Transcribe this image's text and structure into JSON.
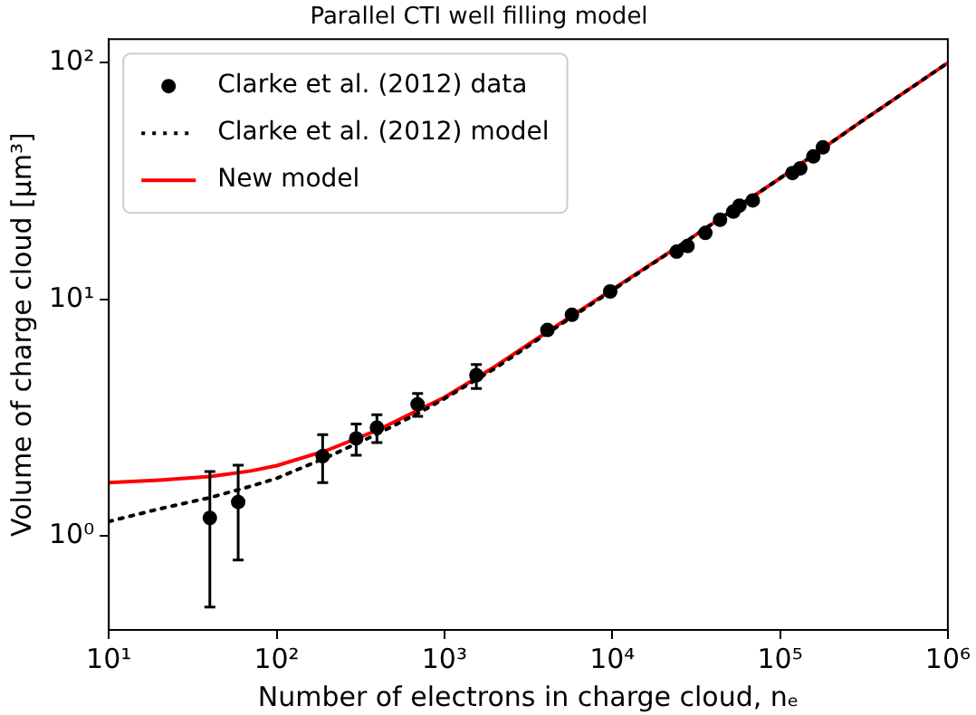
{
  "chart_data": {
    "type": "scatter",
    "title": "Parallel CTI well filling model",
    "xlabel": "Number of electrons in charge cloud, nₑ",
    "ylabel": "Volume of charge cloud [μm³]",
    "log": "xy",
    "xlim": [
      10,
      1000000
    ],
    "ylim": [
      0.4,
      126
    ],
    "xticks": [
      {
        "value": 10,
        "label": "10¹"
      },
      {
        "value": 100,
        "label": "10²"
      },
      {
        "value": 1000,
        "label": "10³"
      },
      {
        "value": 10000,
        "label": "10⁴"
      },
      {
        "value": 100000,
        "label": "10⁵"
      },
      {
        "value": 1000000,
        "label": "10⁶"
      }
    ],
    "yticks": [
      {
        "value": 1,
        "label": "10⁰"
      },
      {
        "value": 10,
        "label": "10¹"
      },
      {
        "value": 100,
        "label": "10²"
      }
    ],
    "grid": false,
    "legend": "top left",
    "series": [
      {
        "name": "Clarke et al. (2012) data",
        "marker": "circle",
        "color": "#000000",
        "x": [
          40,
          59,
          188,
          298,
          396,
          692,
          1550,
          4110,
          5750,
          9730,
          24200,
          28100,
          35900,
          43900,
          52700,
          57300,
          68800,
          118600,
          132000,
          158000,
          180000
        ],
        "values": [
          1.19,
          1.39,
          2.17,
          2.58,
          2.87,
          3.6,
          4.78,
          7.42,
          8.6,
          10.8,
          15.9,
          16.8,
          19.1,
          21.7,
          23.5,
          24.9,
          26.2,
          34.2,
          35.8,
          40.2,
          43.9
        ],
        "errors": [
          [
            0.5,
            1.87
          ],
          [
            0.79,
            1.99
          ],
          [
            1.68,
            2.68
          ],
          [
            2.19,
            2.97
          ],
          [
            2.48,
            3.25
          ],
          [
            3.2,
            4.0
          ],
          [
            4.2,
            5.3
          ],
          null,
          null,
          null,
          null,
          null,
          null,
          null,
          null,
          null,
          null,
          null,
          null,
          null,
          null
        ]
      },
      {
        "name": "Clarke et al. (2012) model",
        "type": "line",
        "line_style": "dotted",
        "marker": "none",
        "color": "#000000",
        "x": [
          10,
          20,
          40,
          70,
          100,
          200,
          400,
          700,
          1000,
          2000,
          4000,
          10000,
          30000,
          100000,
          300000,
          1000000
        ],
        "values": [
          1.15,
          1.3,
          1.45,
          1.62,
          1.75,
          2.15,
          2.7,
          3.3,
          3.8,
          5.1,
          7.1,
          10.9,
          18.3,
          32.5,
          56,
          100
        ]
      },
      {
        "name": "New model",
        "type": "line",
        "line_style": "solid",
        "marker": "none",
        "color": "#ff0000",
        "x": [
          10,
          20,
          40,
          70,
          100,
          200,
          400,
          700,
          1000,
          2000,
          4000,
          10000,
          30000,
          100000,
          300000,
          1000000
        ],
        "values": [
          1.68,
          1.72,
          1.78,
          1.88,
          1.98,
          2.3,
          2.8,
          3.4,
          3.85,
          5.2,
          7.2,
          11,
          18.3,
          32.5,
          56,
          100
        ]
      }
    ]
  }
}
